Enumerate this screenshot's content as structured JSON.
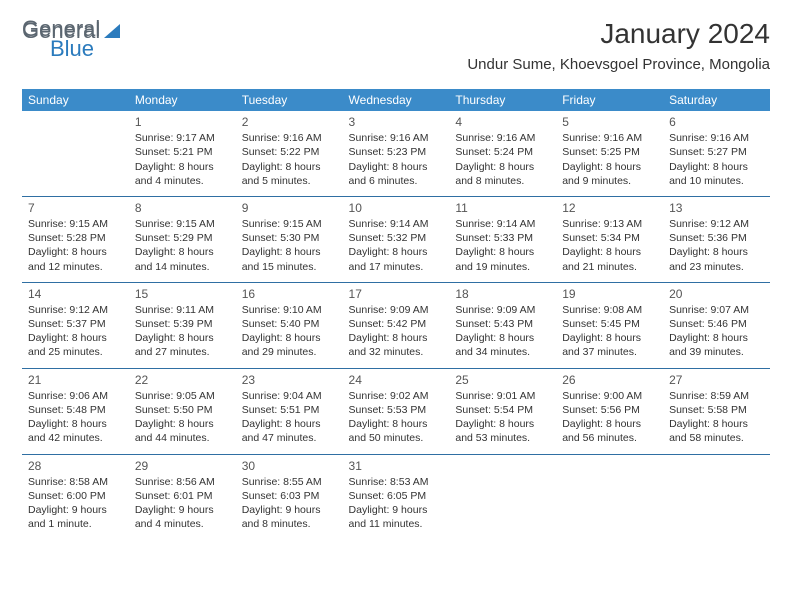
{
  "brand": {
    "part1": "General",
    "part2": "Blue"
  },
  "title": "January 2024",
  "location": "Undur Sume, Khoevsgoel Province, Mongolia",
  "colors": {
    "header_bg": "#3b8bc9",
    "header_text": "#ffffff",
    "row_border": "#2f6fa3",
    "page_bg": "#ffffff",
    "text": "#333333",
    "brand_gray": "#5b6670",
    "brand_blue": "#2b7bbd"
  },
  "weekdays": [
    "Sunday",
    "Monday",
    "Tuesday",
    "Wednesday",
    "Thursday",
    "Friday",
    "Saturday"
  ],
  "weeks": [
    [
      {
        "num": "",
        "sunrise": "",
        "sunset": "",
        "daylight": ""
      },
      {
        "num": "1",
        "sunrise": "Sunrise: 9:17 AM",
        "sunset": "Sunset: 5:21 PM",
        "daylight": "Daylight: 8 hours and 4 minutes."
      },
      {
        "num": "2",
        "sunrise": "Sunrise: 9:16 AM",
        "sunset": "Sunset: 5:22 PM",
        "daylight": "Daylight: 8 hours and 5 minutes."
      },
      {
        "num": "3",
        "sunrise": "Sunrise: 9:16 AM",
        "sunset": "Sunset: 5:23 PM",
        "daylight": "Daylight: 8 hours and 6 minutes."
      },
      {
        "num": "4",
        "sunrise": "Sunrise: 9:16 AM",
        "sunset": "Sunset: 5:24 PM",
        "daylight": "Daylight: 8 hours and 8 minutes."
      },
      {
        "num": "5",
        "sunrise": "Sunrise: 9:16 AM",
        "sunset": "Sunset: 5:25 PM",
        "daylight": "Daylight: 8 hours and 9 minutes."
      },
      {
        "num": "6",
        "sunrise": "Sunrise: 9:16 AM",
        "sunset": "Sunset: 5:27 PM",
        "daylight": "Daylight: 8 hours and 10 minutes."
      }
    ],
    [
      {
        "num": "7",
        "sunrise": "Sunrise: 9:15 AM",
        "sunset": "Sunset: 5:28 PM",
        "daylight": "Daylight: 8 hours and 12 minutes."
      },
      {
        "num": "8",
        "sunrise": "Sunrise: 9:15 AM",
        "sunset": "Sunset: 5:29 PM",
        "daylight": "Daylight: 8 hours and 14 minutes."
      },
      {
        "num": "9",
        "sunrise": "Sunrise: 9:15 AM",
        "sunset": "Sunset: 5:30 PM",
        "daylight": "Daylight: 8 hours and 15 minutes."
      },
      {
        "num": "10",
        "sunrise": "Sunrise: 9:14 AM",
        "sunset": "Sunset: 5:32 PM",
        "daylight": "Daylight: 8 hours and 17 minutes."
      },
      {
        "num": "11",
        "sunrise": "Sunrise: 9:14 AM",
        "sunset": "Sunset: 5:33 PM",
        "daylight": "Daylight: 8 hours and 19 minutes."
      },
      {
        "num": "12",
        "sunrise": "Sunrise: 9:13 AM",
        "sunset": "Sunset: 5:34 PM",
        "daylight": "Daylight: 8 hours and 21 minutes."
      },
      {
        "num": "13",
        "sunrise": "Sunrise: 9:12 AM",
        "sunset": "Sunset: 5:36 PM",
        "daylight": "Daylight: 8 hours and 23 minutes."
      }
    ],
    [
      {
        "num": "14",
        "sunrise": "Sunrise: 9:12 AM",
        "sunset": "Sunset: 5:37 PM",
        "daylight": "Daylight: 8 hours and 25 minutes."
      },
      {
        "num": "15",
        "sunrise": "Sunrise: 9:11 AM",
        "sunset": "Sunset: 5:39 PM",
        "daylight": "Daylight: 8 hours and 27 minutes."
      },
      {
        "num": "16",
        "sunrise": "Sunrise: 9:10 AM",
        "sunset": "Sunset: 5:40 PM",
        "daylight": "Daylight: 8 hours and 29 minutes."
      },
      {
        "num": "17",
        "sunrise": "Sunrise: 9:09 AM",
        "sunset": "Sunset: 5:42 PM",
        "daylight": "Daylight: 8 hours and 32 minutes."
      },
      {
        "num": "18",
        "sunrise": "Sunrise: 9:09 AM",
        "sunset": "Sunset: 5:43 PM",
        "daylight": "Daylight: 8 hours and 34 minutes."
      },
      {
        "num": "19",
        "sunrise": "Sunrise: 9:08 AM",
        "sunset": "Sunset: 5:45 PM",
        "daylight": "Daylight: 8 hours and 37 minutes."
      },
      {
        "num": "20",
        "sunrise": "Sunrise: 9:07 AM",
        "sunset": "Sunset: 5:46 PM",
        "daylight": "Daylight: 8 hours and 39 minutes."
      }
    ],
    [
      {
        "num": "21",
        "sunrise": "Sunrise: 9:06 AM",
        "sunset": "Sunset: 5:48 PM",
        "daylight": "Daylight: 8 hours and 42 minutes."
      },
      {
        "num": "22",
        "sunrise": "Sunrise: 9:05 AM",
        "sunset": "Sunset: 5:50 PM",
        "daylight": "Daylight: 8 hours and 44 minutes."
      },
      {
        "num": "23",
        "sunrise": "Sunrise: 9:04 AM",
        "sunset": "Sunset: 5:51 PM",
        "daylight": "Daylight: 8 hours and 47 minutes."
      },
      {
        "num": "24",
        "sunrise": "Sunrise: 9:02 AM",
        "sunset": "Sunset: 5:53 PM",
        "daylight": "Daylight: 8 hours and 50 minutes."
      },
      {
        "num": "25",
        "sunrise": "Sunrise: 9:01 AM",
        "sunset": "Sunset: 5:54 PM",
        "daylight": "Daylight: 8 hours and 53 minutes."
      },
      {
        "num": "26",
        "sunrise": "Sunrise: 9:00 AM",
        "sunset": "Sunset: 5:56 PM",
        "daylight": "Daylight: 8 hours and 56 minutes."
      },
      {
        "num": "27",
        "sunrise": "Sunrise: 8:59 AM",
        "sunset": "Sunset: 5:58 PM",
        "daylight": "Daylight: 8 hours and 58 minutes."
      }
    ],
    [
      {
        "num": "28",
        "sunrise": "Sunrise: 8:58 AM",
        "sunset": "Sunset: 6:00 PM",
        "daylight": "Daylight: 9 hours and 1 minute."
      },
      {
        "num": "29",
        "sunrise": "Sunrise: 8:56 AM",
        "sunset": "Sunset: 6:01 PM",
        "daylight": "Daylight: 9 hours and 4 minutes."
      },
      {
        "num": "30",
        "sunrise": "Sunrise: 8:55 AM",
        "sunset": "Sunset: 6:03 PM",
        "daylight": "Daylight: 9 hours and 8 minutes."
      },
      {
        "num": "31",
        "sunrise": "Sunrise: 8:53 AM",
        "sunset": "Sunset: 6:05 PM",
        "daylight": "Daylight: 9 hours and 11 minutes."
      },
      {
        "num": "",
        "sunrise": "",
        "sunset": "",
        "daylight": ""
      },
      {
        "num": "",
        "sunrise": "",
        "sunset": "",
        "daylight": ""
      },
      {
        "num": "",
        "sunrise": "",
        "sunset": "",
        "daylight": ""
      }
    ]
  ]
}
